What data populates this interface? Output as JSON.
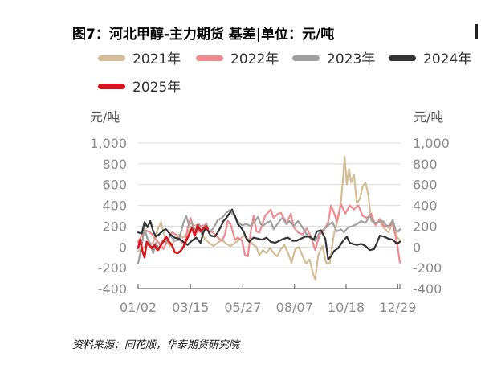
{
  "title": "图7：河北甲醇-主力期货 基差|单位：元/吨",
  "source": "资料来源：同花顺，华泰期货研究院",
  "chart_data": {
    "type": "line",
    "title": "图7：河北甲醇-主力期货 基差|单位：元/吨",
    "ylabel_left": "元/吨",
    "ylabel_right": "元/吨",
    "ylim": [
      -400,
      1000
    ],
    "yticks": [
      -400,
      -200,
      0,
      200,
      400,
      600,
      800,
      1000
    ],
    "yticks_left_labels": [
      "-400",
      "-200",
      "0",
      "200",
      "400",
      "600",
      "800",
      "1,000"
    ],
    "yticks_right_labels": [
      "-400",
      "-200",
      "0",
      "200",
      "400",
      "600",
      "800",
      "1,000"
    ],
    "x_days": [
      1,
      366
    ],
    "xticks": [
      1,
      74,
      147,
      219,
      291,
      363
    ],
    "xtick_labels": [
      "01/02",
      "03/15",
      "05/27",
      "08/07",
      "10/18",
      "12/29"
    ],
    "grid": "horizontal",
    "legend_position": "top",
    "series": [
      {
        "name": "2021年",
        "color": "#d4bd96",
        "points": [
          [
            1,
            -40
          ],
          [
            8,
            -10
          ],
          [
            15,
            30
          ],
          [
            22,
            40
          ],
          [
            29,
            180
          ],
          [
            33,
            240
          ],
          [
            36,
            150
          ],
          [
            40,
            50
          ],
          [
            46,
            10
          ],
          [
            52,
            60
          ],
          [
            58,
            120
          ],
          [
            64,
            90
          ],
          [
            70,
            140
          ],
          [
            76,
            200
          ],
          [
            82,
            210
          ],
          [
            88,
            150
          ],
          [
            94,
            80
          ],
          [
            100,
            40
          ],
          [
            106,
            10
          ],
          [
            112,
            40
          ],
          [
            118,
            70
          ],
          [
            124,
            30
          ],
          [
            130,
            10
          ],
          [
            136,
            40
          ],
          [
            142,
            70
          ],
          [
            148,
            110
          ],
          [
            154,
            80
          ],
          [
            160,
            30
          ],
          [
            166,
            0
          ],
          [
            170,
            -80
          ],
          [
            175,
            -30
          ],
          [
            180,
            -60
          ],
          [
            185,
            -10
          ],
          [
            190,
            -60
          ],
          [
            195,
            -90
          ],
          [
            200,
            -20
          ],
          [
            205,
            20
          ],
          [
            210,
            -60
          ],
          [
            215,
            -150
          ],
          [
            220,
            -20
          ],
          [
            225,
            0
          ],
          [
            230,
            -80
          ],
          [
            235,
            -160
          ],
          [
            240,
            -120
          ],
          [
            245,
            -260
          ],
          [
            248,
            -310
          ],
          [
            252,
            -80
          ],
          [
            258,
            10
          ],
          [
            263,
            -150
          ],
          [
            268,
            -160
          ],
          [
            274,
            120
          ],
          [
            280,
            280
          ],
          [
            284,
            450
          ],
          [
            287,
            680
          ],
          [
            289,
            870
          ],
          [
            292,
            600
          ],
          [
            295,
            750
          ],
          [
            298,
            620
          ],
          [
            302,
            700
          ],
          [
            306,
            420
          ],
          [
            310,
            460
          ],
          [
            314,
            580
          ],
          [
            318,
            620
          ],
          [
            322,
            500
          ],
          [
            326,
            250
          ],
          [
            332,
            220
          ],
          [
            338,
            240
          ],
          [
            344,
            180
          ],
          [
            350,
            140
          ],
          [
            356,
            230
          ],
          [
            362,
            100
          ],
          [
            366,
            60
          ]
        ]
      },
      {
        "name": "2022年",
        "color": "#f08a8f",
        "points": [
          [
            1,
            50
          ],
          [
            6,
            110
          ],
          [
            12,
            160
          ],
          [
            18,
            140
          ],
          [
            24,
            90
          ],
          [
            30,
            40
          ],
          [
            36,
            -20
          ],
          [
            42,
            60
          ],
          [
            48,
            140
          ],
          [
            54,
            120
          ],
          [
            60,
            60
          ],
          [
            66,
            20
          ],
          [
            70,
            180
          ],
          [
            74,
            280
          ],
          [
            78,
            190
          ],
          [
            84,
            140
          ],
          [
            88,
            200
          ],
          [
            94,
            210
          ],
          [
            100,
            140
          ],
          [
            104,
            150
          ],
          [
            108,
            120
          ],
          [
            114,
            80
          ],
          [
            118,
            60
          ],
          [
            122,
            120
          ],
          [
            126,
            250
          ],
          [
            130,
            220
          ],
          [
            136,
            70
          ],
          [
            140,
            90
          ],
          [
            146,
            60
          ],
          [
            150,
            -80
          ],
          [
            154,
            -90
          ],
          [
            158,
            140
          ],
          [
            162,
            300
          ],
          [
            166,
            150
          ],
          [
            170,
            140
          ],
          [
            174,
            210
          ],
          [
            178,
            300
          ],
          [
            182,
            330
          ],
          [
            186,
            360
          ],
          [
            190,
            280
          ],
          [
            196,
            320
          ],
          [
            200,
            330
          ],
          [
            204,
            280
          ],
          [
            208,
            230
          ],
          [
            214,
            320
          ],
          [
            218,
            190
          ],
          [
            224,
            140
          ],
          [
            230,
            120
          ],
          [
            236,
            180
          ],
          [
            242,
            100
          ],
          [
            248,
            -30
          ],
          [
            254,
            120
          ],
          [
            260,
            160
          ],
          [
            266,
            240
          ],
          [
            270,
            400
          ],
          [
            274,
            330
          ],
          [
            278,
            250
          ],
          [
            284,
            410
          ],
          [
            290,
            320
          ],
          [
            296,
            400
          ],
          [
            302,
            360
          ],
          [
            308,
            400
          ],
          [
            314,
            300
          ],
          [
            320,
            280
          ],
          [
            326,
            320
          ],
          [
            332,
            210
          ],
          [
            338,
            270
          ],
          [
            344,
            200
          ],
          [
            350,
            190
          ],
          [
            356,
            230
          ],
          [
            362,
            40
          ],
          [
            366,
            -150
          ]
        ]
      },
      {
        "name": "2023年",
        "color": "#a0a0a0",
        "points": [
          [
            1,
            -160
          ],
          [
            5,
            -20
          ],
          [
            10,
            180
          ],
          [
            14,
            80
          ],
          [
            18,
            30
          ],
          [
            22,
            -60
          ],
          [
            26,
            40
          ],
          [
            30,
            -30
          ],
          [
            34,
            60
          ],
          [
            40,
            50
          ],
          [
            46,
            110
          ],
          [
            52,
            60
          ],
          [
            58,
            70
          ],
          [
            64,
            230
          ],
          [
            68,
            300
          ],
          [
            72,
            210
          ],
          [
            76,
            240
          ],
          [
            80,
            120
          ],
          [
            86,
            220
          ],
          [
            90,
            120
          ],
          [
            96,
            230
          ],
          [
            100,
            140
          ],
          [
            106,
            180
          ],
          [
            112,
            260
          ],
          [
            118,
            280
          ],
          [
            124,
            330
          ],
          [
            128,
            350
          ],
          [
            132,
            320
          ],
          [
            136,
            300
          ],
          [
            140,
            240
          ],
          [
            146,
            210
          ],
          [
            152,
            220
          ],
          [
            158,
            200
          ],
          [
            164,
            250
          ],
          [
            168,
            290
          ],
          [
            172,
            220
          ],
          [
            176,
            210
          ],
          [
            182,
            240
          ],
          [
            186,
            250
          ],
          [
            190,
            170
          ],
          [
            196,
            230
          ],
          [
            202,
            280
          ],
          [
            208,
            220
          ],
          [
            212,
            250
          ],
          [
            218,
            200
          ],
          [
            224,
            250
          ],
          [
            230,
            190
          ],
          [
            236,
            120
          ],
          [
            242,
            80
          ],
          [
            248,
            60
          ],
          [
            254,
            140
          ],
          [
            260,
            170
          ],
          [
            266,
            210
          ],
          [
            272,
            240
          ],
          [
            278,
            150
          ],
          [
            284,
            170
          ],
          [
            288,
            140
          ],
          [
            294,
            190
          ],
          [
            300,
            200
          ],
          [
            306,
            220
          ],
          [
            312,
            250
          ],
          [
            318,
            230
          ],
          [
            324,
            300
          ],
          [
            330,
            230
          ],
          [
            336,
            240
          ],
          [
            342,
            250
          ],
          [
            348,
            200
          ],
          [
            352,
            210
          ],
          [
            356,
            260
          ],
          [
            360,
            160
          ],
          [
            364,
            150
          ],
          [
            366,
            170
          ]
        ]
      },
      {
        "name": "2024年",
        "color": "#333333",
        "points": [
          [
            1,
            140
          ],
          [
            6,
            130
          ],
          [
            10,
            240
          ],
          [
            14,
            190
          ],
          [
            18,
            250
          ],
          [
            22,
            150
          ],
          [
            26,
            100
          ],
          [
            30,
            120
          ],
          [
            36,
            160
          ],
          [
            40,
            170
          ],
          [
            46,
            120
          ],
          [
            52,
            90
          ],
          [
            58,
            80
          ],
          [
            64,
            50
          ],
          [
            70,
            20
          ],
          [
            76,
            60
          ],
          [
            82,
            90
          ],
          [
            88,
            40
          ],
          [
            92,
            140
          ],
          [
            96,
            190
          ],
          [
            102,
            110
          ],
          [
            108,
            100
          ],
          [
            112,
            140
          ],
          [
            116,
            190
          ],
          [
            120,
            250
          ],
          [
            124,
            280
          ],
          [
            128,
            320
          ],
          [
            132,
            360
          ],
          [
            136,
            300
          ],
          [
            140,
            220
          ],
          [
            144,
            190
          ],
          [
            148,
            150
          ],
          [
            152,
            80
          ],
          [
            156,
            50
          ],
          [
            162,
            90
          ],
          [
            168,
            80
          ],
          [
            174,
            70
          ],
          [
            180,
            90
          ],
          [
            186,
            50
          ],
          [
            192,
            40
          ],
          [
            198,
            60
          ],
          [
            204,
            80
          ],
          [
            210,
            90
          ],
          [
            216,
            60
          ],
          [
            222,
            60
          ],
          [
            228,
            80
          ],
          [
            234,
            100
          ],
          [
            240,
            100
          ],
          [
            246,
            70
          ],
          [
            250,
            150
          ],
          [
            256,
            160
          ],
          [
            262,
            80
          ],
          [
            266,
            -120
          ],
          [
            270,
            -90
          ],
          [
            274,
            -40
          ],
          [
            280,
            -10
          ],
          [
            286,
            50
          ],
          [
            292,
            100
          ],
          [
            296,
            40
          ],
          [
            300,
            30
          ],
          [
            306,
            20
          ],
          [
            312,
            30
          ],
          [
            318,
            10
          ],
          [
            324,
            -30
          ],
          [
            330,
            -20
          ],
          [
            334,
            40
          ],
          [
            338,
            110
          ],
          [
            344,
            100
          ],
          [
            350,
            80
          ],
          [
            356,
            70
          ],
          [
            362,
            30
          ],
          [
            366,
            50
          ]
        ]
      },
      {
        "name": "2025年",
        "color": "#d9141c",
        "points": [
          [
            1,
            -10
          ],
          [
            4,
            70
          ],
          [
            7,
            -40
          ],
          [
            10,
            -100
          ],
          [
            13,
            50
          ],
          [
            16,
            20
          ],
          [
            20,
            -10
          ],
          [
            24,
            20
          ],
          [
            28,
            -30
          ],
          [
            32,
            10
          ],
          [
            36,
            50
          ],
          [
            40,
            100
          ],
          [
            44,
            50
          ],
          [
            48,
            20
          ],
          [
            52,
            -50
          ],
          [
            56,
            -60
          ],
          [
            60,
            -40
          ],
          [
            64,
            0
          ],
          [
            68,
            60
          ],
          [
            72,
            120
          ],
          [
            76,
            180
          ],
          [
            80,
            110
          ],
          [
            84,
            210
          ],
          [
            88,
            150
          ],
          [
            92,
            180
          ],
          [
            96,
            200
          ],
          [
            98,
            170
          ]
        ]
      }
    ]
  }
}
